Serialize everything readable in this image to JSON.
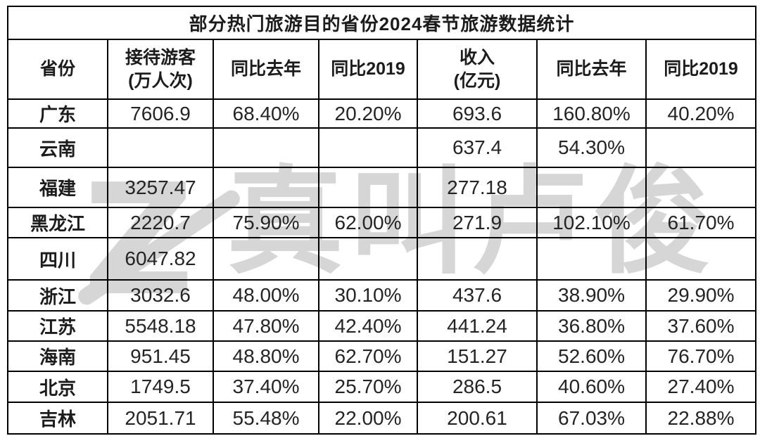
{
  "watermark": {
    "logo_glyph": "Z",
    "text": "真叫卢俊",
    "color": "#d6d6d6"
  },
  "header_display": [
    {
      "line1": "省份",
      "line2": ""
    },
    {
      "line1": "接待游客",
      "line2": "(万人次)"
    },
    {
      "line1": "同比去年",
      "line2": ""
    },
    {
      "line1": "同比2019",
      "line2": ""
    },
    {
      "line1": "收入",
      "line2": "(亿元)"
    },
    {
      "line1": "同比去年",
      "line2": ""
    },
    {
      "line1": "同比2019",
      "line2": ""
    }
  ],
  "chart_data": {
    "type": "table",
    "title": "部分热门旅游目的省份2024春节旅游数据统计",
    "columns": [
      "省份",
      "接待游客(万人次)",
      "同比去年",
      "同比2019",
      "收入(亿元)",
      "同比去年",
      "同比2019"
    ],
    "rows": [
      [
        "广东",
        "7606.9",
        "68.40%",
        "20.20%",
        "693.6",
        "160.80%",
        "40.20%"
      ],
      [
        "云南",
        "",
        "",
        "",
        "637.4",
        "54.30%",
        ""
      ],
      [
        "福建",
        "3257.47",
        "",
        "",
        "277.18",
        "",
        ""
      ],
      [
        "黑龙江",
        "2220.7",
        "75.90%",
        "62.00%",
        "271.9",
        "102.10%",
        "61.70%"
      ],
      [
        "四川",
        "6047.82",
        "",
        "",
        "",
        "",
        ""
      ],
      [
        "浙江",
        "3032.6",
        "48.00%",
        "30.10%",
        "437.6",
        "38.90%",
        "29.90%"
      ],
      [
        "江苏",
        "5548.18",
        "47.80%",
        "42.40%",
        "441.24",
        "36.80%",
        "37.60%"
      ],
      [
        "海南",
        "951.45",
        "48.80%",
        "62.70%",
        "151.27",
        "52.60%",
        "76.70%"
      ],
      [
        "北京",
        "1749.5",
        "37.40%",
        "25.70%",
        "286.5",
        "40.60%",
        "27.40%"
      ],
      [
        "吉林",
        "2051.71",
        "55.48%",
        "22.00%",
        "200.61",
        "67.03%",
        "22.88%"
      ]
    ]
  }
}
